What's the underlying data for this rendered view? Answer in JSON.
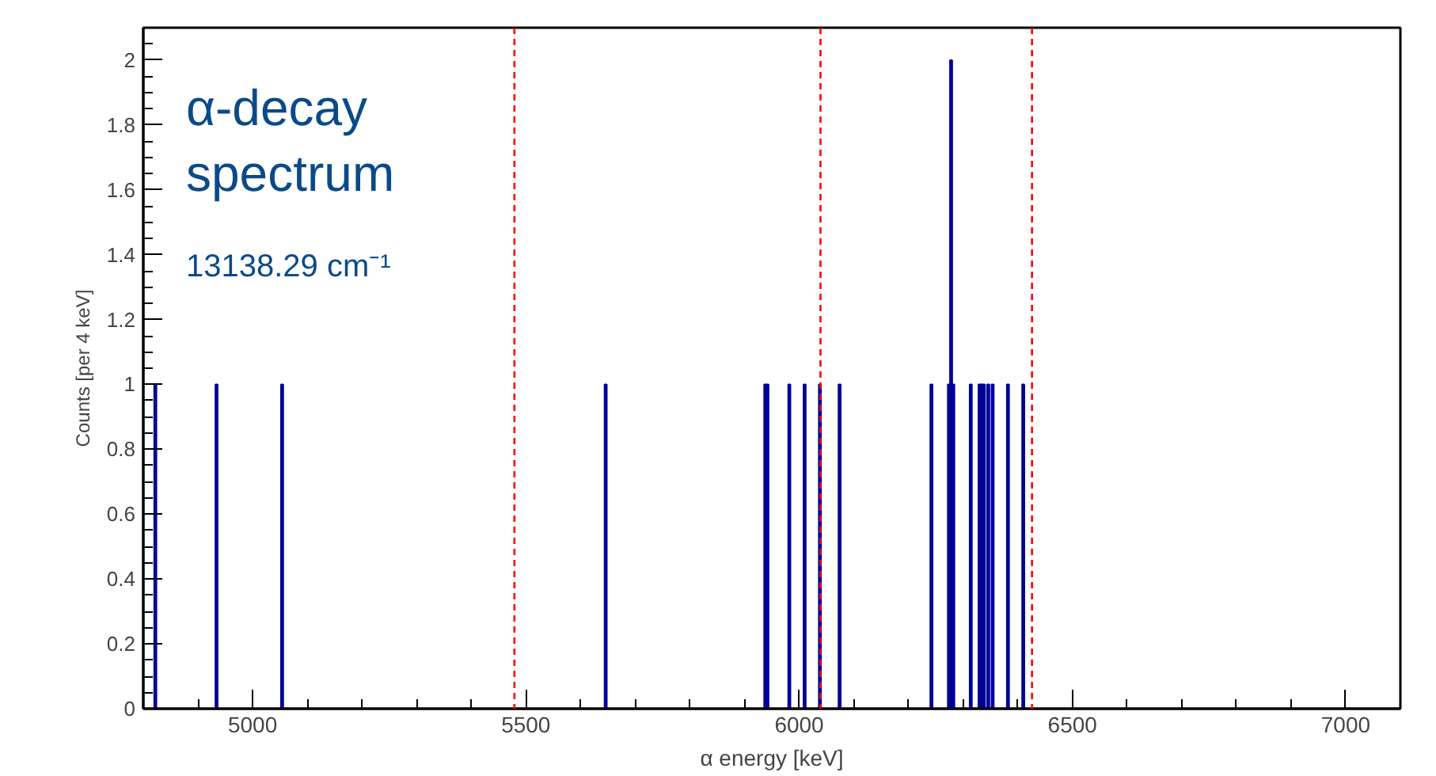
{
  "chart_data": {
    "type": "histogram",
    "xlabel": "α energy [keV]",
    "ylabel": "Counts [per 4 keV]",
    "annotations": [
      "α-decay spectrum",
      "13138.29 cm⁻¹"
    ],
    "bins": [
      4820,
      4824,
      4932,
      4936,
      5052,
      5056,
      5644,
      5648,
      5936,
      5940,
      5944,
      5980,
      5984,
      6008,
      6012,
      6036,
      6040,
      6072,
      6076,
      6240,
      6244,
      6272,
      6276,
      6280,
      6284,
      6312,
      6316,
      6328,
      6332,
      6336,
      6340,
      6344,
      6348,
      6352,
      6356,
      6380,
      6384,
      6408,
      6412
    ],
    "values": [
      1,
      0,
      1,
      0,
      1,
      0,
      1,
      0,
      1,
      1,
      0,
      1,
      0,
      1,
      0,
      1,
      0,
      1,
      0,
      1,
      0,
      1,
      2,
      1,
      0,
      1,
      0,
      1,
      1,
      1,
      0,
      1,
      0,
      1,
      0,
      1,
      0,
      1
    ],
    "color": "#000099",
    "xlim": [
      4800,
      7100
    ],
    "xticks": [
      5000,
      5500,
      6000,
      6500,
      7000
    ],
    "ylim": [
      0,
      2.1
    ],
    "yticks": [
      0,
      0.2,
      0.4,
      0.6,
      0.8,
      1,
      1.2,
      1.4,
      1.6,
      1.8,
      2
    ],
    "ref_lines": [
      {
        "axis": "x",
        "value": 5479,
        "color": "#ff0000",
        "line_style": "dashed"
      },
      {
        "axis": "x",
        "value": 6039,
        "color": "#ff0000",
        "line_style": "dashed"
      },
      {
        "axis": "x",
        "value": 6426,
        "color": "#ff0000",
        "line_style": "dashed"
      }
    ],
    "grid": false
  }
}
